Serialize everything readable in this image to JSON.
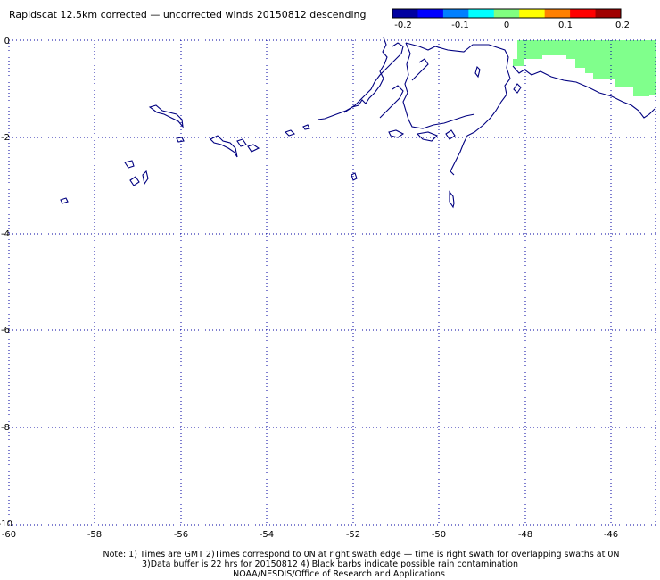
{
  "title": "Rapidscat 12.5km corrected — uncorrected winds 20150812 descending",
  "colorbar": {
    "ticks": [
      "-0.2",
      "-0.1",
      "0",
      "0.1",
      "0.2"
    ],
    "colors": [
      "#0000a0",
      "#0000ff",
      "#0080ff",
      "#00ffff",
      "#80ff80",
      "#ffff00",
      "#ff8000",
      "#ff0000",
      "#a00000"
    ]
  },
  "axes": {
    "x_ticks": [
      "-60",
      "-58",
      "-56",
      "-54",
      "-52",
      "-50",
      "-48",
      "-46"
    ],
    "y_ticks": [
      "0",
      "-2",
      "-4",
      "-6",
      "-8",
      "-10"
    ]
  },
  "colors": {
    "coastline": "#000080",
    "grid": "#0000a0",
    "swath_fill": "#80ff8c"
  },
  "notes": {
    "line1": "Note: 1) Times are GMT 2)Times correspond to 0N at right swath edge — time is right swath for overlapping swaths at 0N",
    "line2": "3)Data buffer is 22 hrs for 20150812 4) Black barbs indicate possible rain contamination",
    "line3": "NOAA/NESDIS/Office of Research and Applications"
  }
}
